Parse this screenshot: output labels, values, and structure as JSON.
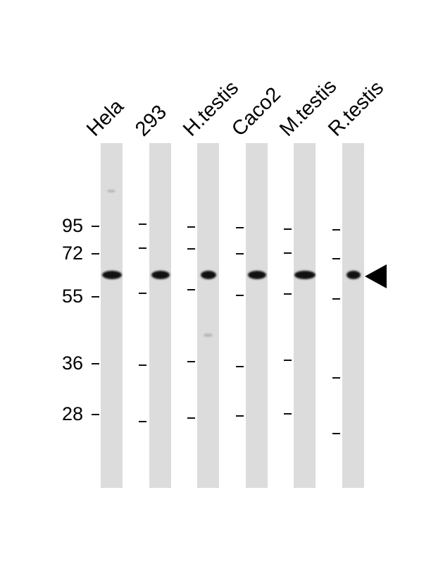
{
  "lanes": [
    {
      "label": "Hela"
    },
    {
      "label": "293"
    },
    {
      "label": "H.testis"
    },
    {
      "label": "Caco2"
    },
    {
      "label": "M.testis"
    },
    {
      "label": "R.testis"
    }
  ],
  "marker_labels": [
    "95",
    "72",
    "55",
    "36",
    "28"
  ],
  "target_band_arrow": "arrow-left-icon"
}
